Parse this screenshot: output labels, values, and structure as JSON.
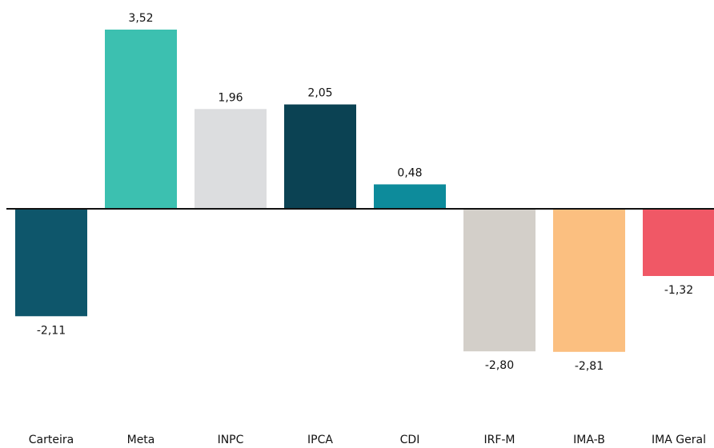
{
  "chart_data": {
    "type": "bar",
    "categories": [
      "Carteira",
      "Meta",
      "INPC",
      "IPCA",
      "CDI",
      "IRF-M",
      "IMA-B",
      "IMA Geral"
    ],
    "values": [
      -2.11,
      3.52,
      1.96,
      2.05,
      0.48,
      -2.8,
      -2.81,
      -1.32
    ],
    "value_labels": [
      "-2,11",
      "3,52",
      "1,96",
      "2,05",
      "0,48",
      "-2,80",
      "-2,81",
      "-1,32"
    ],
    "colors": [
      "#0e566b",
      "#3cc0b0",
      "#dcdddf",
      "#0b4253",
      "#0d8b9b",
      "#d3cfc9",
      "#fbbf80",
      "#f05866"
    ]
  }
}
